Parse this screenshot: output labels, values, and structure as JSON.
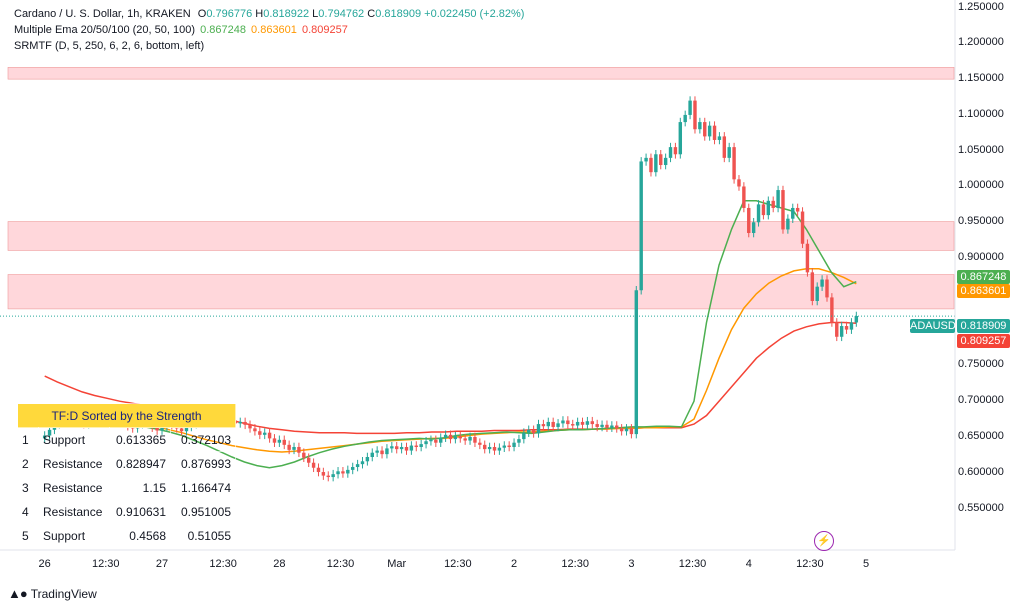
{
  "legend": {
    "line1_prefix": "Cardano / U. S. Dollar, 1h, KRAKEN",
    "o_label": "O",
    "o": "0.796776",
    "h_label": "H",
    "h": "0.818922",
    "l_label": "L",
    "l": "0.794762",
    "c_label": "C",
    "c": "0.818909",
    "change": "+0.022450 (+2.82%)",
    "line2_name": "Multiple Ema 20/50/100 (20, 50, 100)",
    "ema20": "0.867248",
    "ema50": "0.863601",
    "ema100": "0.809257",
    "line3": "SRMTF (D, 5, 250, 6, 2, 6, bottom, left)"
  },
  "table": {
    "header": "TF:D Sorted by the Strength",
    "rows": [
      {
        "n": "1",
        "type": "Support",
        "a": "0.613365",
        "b": "0.372103",
        "kind": "sup"
      },
      {
        "n": "2",
        "type": "Resistance",
        "a": "0.828947",
        "b": "0.876993",
        "kind": "res"
      },
      {
        "n": "3",
        "type": "Resistance",
        "a": "1.15",
        "b": "1.166474",
        "kind": "res"
      },
      {
        "n": "4",
        "type": "Resistance",
        "a": "0.910631",
        "b": "0.951005",
        "kind": "res"
      },
      {
        "n": "5",
        "type": "Support",
        "a": "0.4568",
        "b": "0.51055",
        "kind": "sup"
      }
    ]
  },
  "tags": {
    "symbol": "ADAUSD",
    "price": "0.818909",
    "ema20": "0.867248",
    "ema50": "0.863601",
    "ema100": "0.809257"
  },
  "watermark": "TradingView",
  "colors": {
    "up": "#26a69a",
    "down": "#ef5350",
    "ema20": "#4caf50",
    "ema50": "#ff9800",
    "ema100": "#f44336",
    "zone": "#ffcdd2"
  },
  "chart_data": {
    "type": "candlestick",
    "symbol": "ADAUSD",
    "yticks": [
      "1.250000",
      "1.200000",
      "1.150000",
      "1.100000",
      "1.050000",
      "1.000000",
      "0.950000",
      "0.900000",
      "0.850000",
      "0.800000",
      "0.750000",
      "0.700000",
      "0.650000",
      "0.600000",
      "0.550000"
    ],
    "ylim": [
      0.52,
      1.255
    ],
    "xticks": [
      {
        "label": "26",
        "t": 0
      },
      {
        "label": "12:30",
        "t": 12.5
      },
      {
        "label": "27",
        "t": 24
      },
      {
        "label": "12:30",
        "t": 36.5
      },
      {
        "label": "28",
        "t": 48
      },
      {
        "label": "12:30",
        "t": 60.5
      },
      {
        "label": "Mar",
        "t": 72
      },
      {
        "label": "12:30",
        "t": 84.5
      },
      {
        "label": "2",
        "t": 96
      },
      {
        "label": "12:30",
        "t": 108.5
      },
      {
        "label": "3",
        "t": 120
      },
      {
        "label": "12:30",
        "t": 132.5
      },
      {
        "label": "4",
        "t": 144
      },
      {
        "label": "12:30",
        "t": 156.5
      },
      {
        "label": "5",
        "t": 168
      }
    ],
    "xlim": [
      -3,
      178
    ],
    "zones": [
      {
        "low": 1.15,
        "high": 1.166474
      },
      {
        "low": 0.910631,
        "high": 0.951005
      },
      {
        "low": 0.828947,
        "high": 0.876993
      }
    ],
    "closes": [
      0.652,
      0.66,
      0.668,
      0.675,
      0.671,
      0.678,
      0.682,
      0.676,
      0.668,
      0.673,
      0.679,
      0.684,
      0.677,
      0.672,
      0.669,
      0.674,
      0.67,
      0.665,
      0.662,
      0.668,
      0.673,
      0.669,
      0.663,
      0.659,
      0.664,
      0.669,
      0.667,
      0.662,
      0.658,
      0.664,
      0.668,
      0.672,
      0.676,
      0.671,
      0.675,
      0.678,
      0.674,
      0.676,
      0.673,
      0.669,
      0.671,
      0.667,
      0.662,
      0.658,
      0.653,
      0.656,
      0.648,
      0.642,
      0.646,
      0.639,
      0.632,
      0.636,
      0.628,
      0.621,
      0.614,
      0.607,
      0.601,
      0.596,
      0.594,
      0.598,
      0.602,
      0.599,
      0.604,
      0.608,
      0.612,
      0.616,
      0.622,
      0.628,
      0.631,
      0.626,
      0.634,
      0.637,
      0.633,
      0.636,
      0.631,
      0.638,
      0.636,
      0.64,
      0.644,
      0.646,
      0.642,
      0.649,
      0.653,
      0.647,
      0.651,
      0.648,
      0.645,
      0.65,
      0.642,
      0.639,
      0.633,
      0.636,
      0.631,
      0.635,
      0.638,
      0.636,
      0.642,
      0.647,
      0.656,
      0.66,
      0.655,
      0.668,
      0.665,
      0.671,
      0.664,
      0.669,
      0.673,
      0.668,
      0.666,
      0.671,
      0.667,
      0.672,
      0.668,
      0.664,
      0.667,
      0.663,
      0.666,
      0.662,
      0.658,
      0.662,
      0.654,
      0.855,
      1.035,
      1.04,
      1.02,
      1.045,
      1.03,
      1.04,
      1.055,
      1.045,
      1.09,
      1.1,
      1.12,
      1.08,
      1.09,
      1.07,
      1.085,
      1.065,
      1.07,
      1.04,
      1.055,
      1.01,
      1.0,
      0.97,
      0.935,
      0.95,
      0.975,
      0.96,
      0.98,
      0.97,
      0.995,
      0.94,
      0.955,
      0.97,
      0.965,
      0.92,
      0.88,
      0.84,
      0.86,
      0.87,
      0.845,
      0.81,
      0.79,
      0.805,
      0.8,
      0.81,
      0.819
    ],
    "ema20": [
      0.69,
      0.68,
      0.676,
      0.674,
      0.673,
      0.672,
      0.67,
      0.667,
      0.664,
      0.661,
      0.657,
      0.652,
      0.645,
      0.638,
      0.63,
      0.622,
      0.615,
      0.61,
      0.607,
      0.61,
      0.615,
      0.622,
      0.628,
      0.633,
      0.637,
      0.64,
      0.643,
      0.645,
      0.646,
      0.647,
      0.648,
      0.647,
      0.649,
      0.652,
      0.654,
      0.655,
      0.656,
      0.657,
      0.656,
      0.655,
      0.657,
      0.659,
      0.66,
      0.66,
      0.661,
      0.662,
      0.663,
      0.664,
      0.664,
      0.665,
      0.665,
      0.664,
      0.7,
      0.81,
      0.89,
      0.94,
      0.98,
      0.98,
      0.975,
      0.97,
      0.965,
      0.94,
      0.91,
      0.88,
      0.86,
      0.867
    ],
    "ema50": [
      0.69,
      0.686,
      0.682,
      0.679,
      0.676,
      0.674,
      0.672,
      0.67,
      0.667,
      0.664,
      0.66,
      0.656,
      0.651,
      0.646,
      0.642,
      0.638,
      0.635,
      0.632,
      0.63,
      0.629,
      0.63,
      0.632,
      0.634,
      0.636,
      0.638,
      0.64,
      0.642,
      0.644,
      0.645,
      0.646,
      0.647,
      0.648,
      0.648,
      0.65,
      0.652,
      0.654,
      0.655,
      0.656,
      0.657,
      0.657,
      0.658,
      0.659,
      0.66,
      0.66,
      0.661,
      0.661,
      0.662,
      0.662,
      0.663,
      0.663,
      0.664,
      0.664,
      0.675,
      0.715,
      0.76,
      0.8,
      0.83,
      0.85,
      0.865,
      0.875,
      0.882,
      0.885,
      0.885,
      0.88,
      0.873,
      0.864
    ],
    "ema100": [
      0.735,
      0.727,
      0.72,
      0.713,
      0.708,
      0.704,
      0.7,
      0.697,
      0.694,
      0.692,
      0.69,
      0.687,
      0.684,
      0.681,
      0.677,
      0.673,
      0.669,
      0.665,
      0.662,
      0.66,
      0.658,
      0.657,
      0.656,
      0.656,
      0.656,
      0.655,
      0.655,
      0.655,
      0.655,
      0.656,
      0.656,
      0.657,
      0.657,
      0.658,
      0.658,
      0.658,
      0.659,
      0.659,
      0.659,
      0.66,
      0.66,
      0.66,
      0.661,
      0.661,
      0.661,
      0.662,
      0.662,
      0.662,
      0.663,
      0.663,
      0.663,
      0.663,
      0.668,
      0.68,
      0.7,
      0.72,
      0.74,
      0.76,
      0.775,
      0.788,
      0.798,
      0.804,
      0.808,
      0.81,
      0.81,
      0.809
    ]
  }
}
